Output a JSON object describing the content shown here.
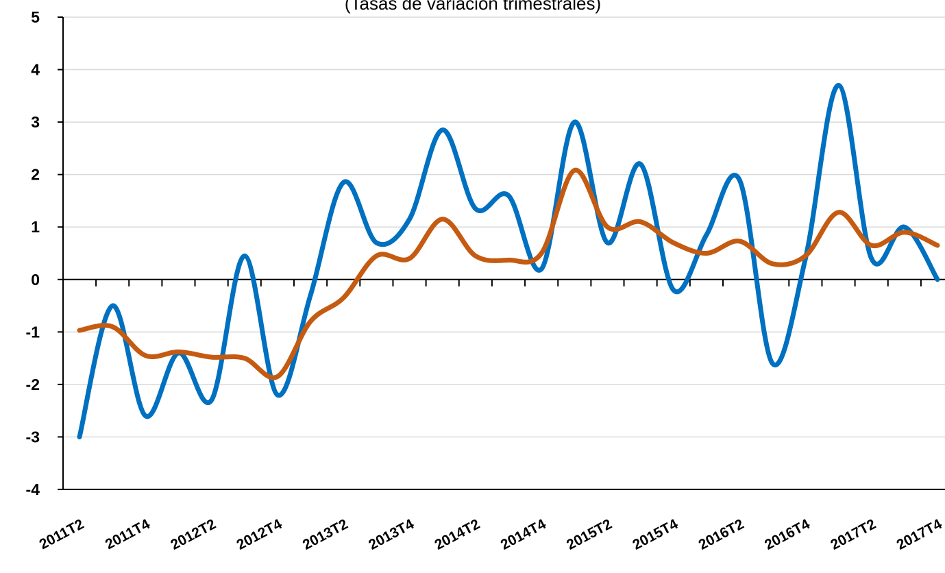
{
  "chart_data": {
    "type": "line",
    "subtitle": "(Tasas de variación trimestrales)",
    "categories": [
      "2011T2",
      null,
      "2011T4",
      null,
      "2012T2",
      null,
      "2012T4",
      null,
      "2013T2",
      null,
      "2013T4",
      null,
      "2014T2",
      null,
      "2014T4",
      null,
      "2015T2",
      null,
      "2015T4",
      null,
      "2016T2",
      null,
      "2016T4",
      null,
      "2017T2",
      null,
      "2017T4"
    ],
    "series": [
      {
        "color": "#0070c0",
        "values": [
          -3.0,
          -0.5,
          -2.6,
          -1.4,
          -2.3,
          0.45,
          -2.2,
          -0.3,
          1.85,
          0.7,
          1.15,
          2.85,
          1.35,
          1.6,
          0.2,
          3.0,
          0.7,
          2.2,
          -0.2,
          0.85,
          1.9,
          -1.6,
          0.4,
          3.7,
          0.4,
          1.0,
          0.0
        ]
      },
      {
        "color": "#c55a11",
        "values": [
          -0.97,
          -0.9,
          -1.45,
          -1.38,
          -1.48,
          -1.5,
          -1.85,
          -0.8,
          -0.35,
          0.45,
          0.4,
          1.15,
          0.45,
          0.37,
          0.5,
          2.08,
          1.0,
          1.1,
          0.7,
          0.5,
          0.73,
          0.3,
          0.45,
          1.28,
          0.65,
          0.9,
          0.65
        ]
      }
    ],
    "ylim": [
      -4,
      5
    ],
    "yticks": [
      -4,
      -3,
      -2,
      -1,
      0,
      1,
      2,
      3,
      4,
      5
    ],
    "grid": true
  }
}
